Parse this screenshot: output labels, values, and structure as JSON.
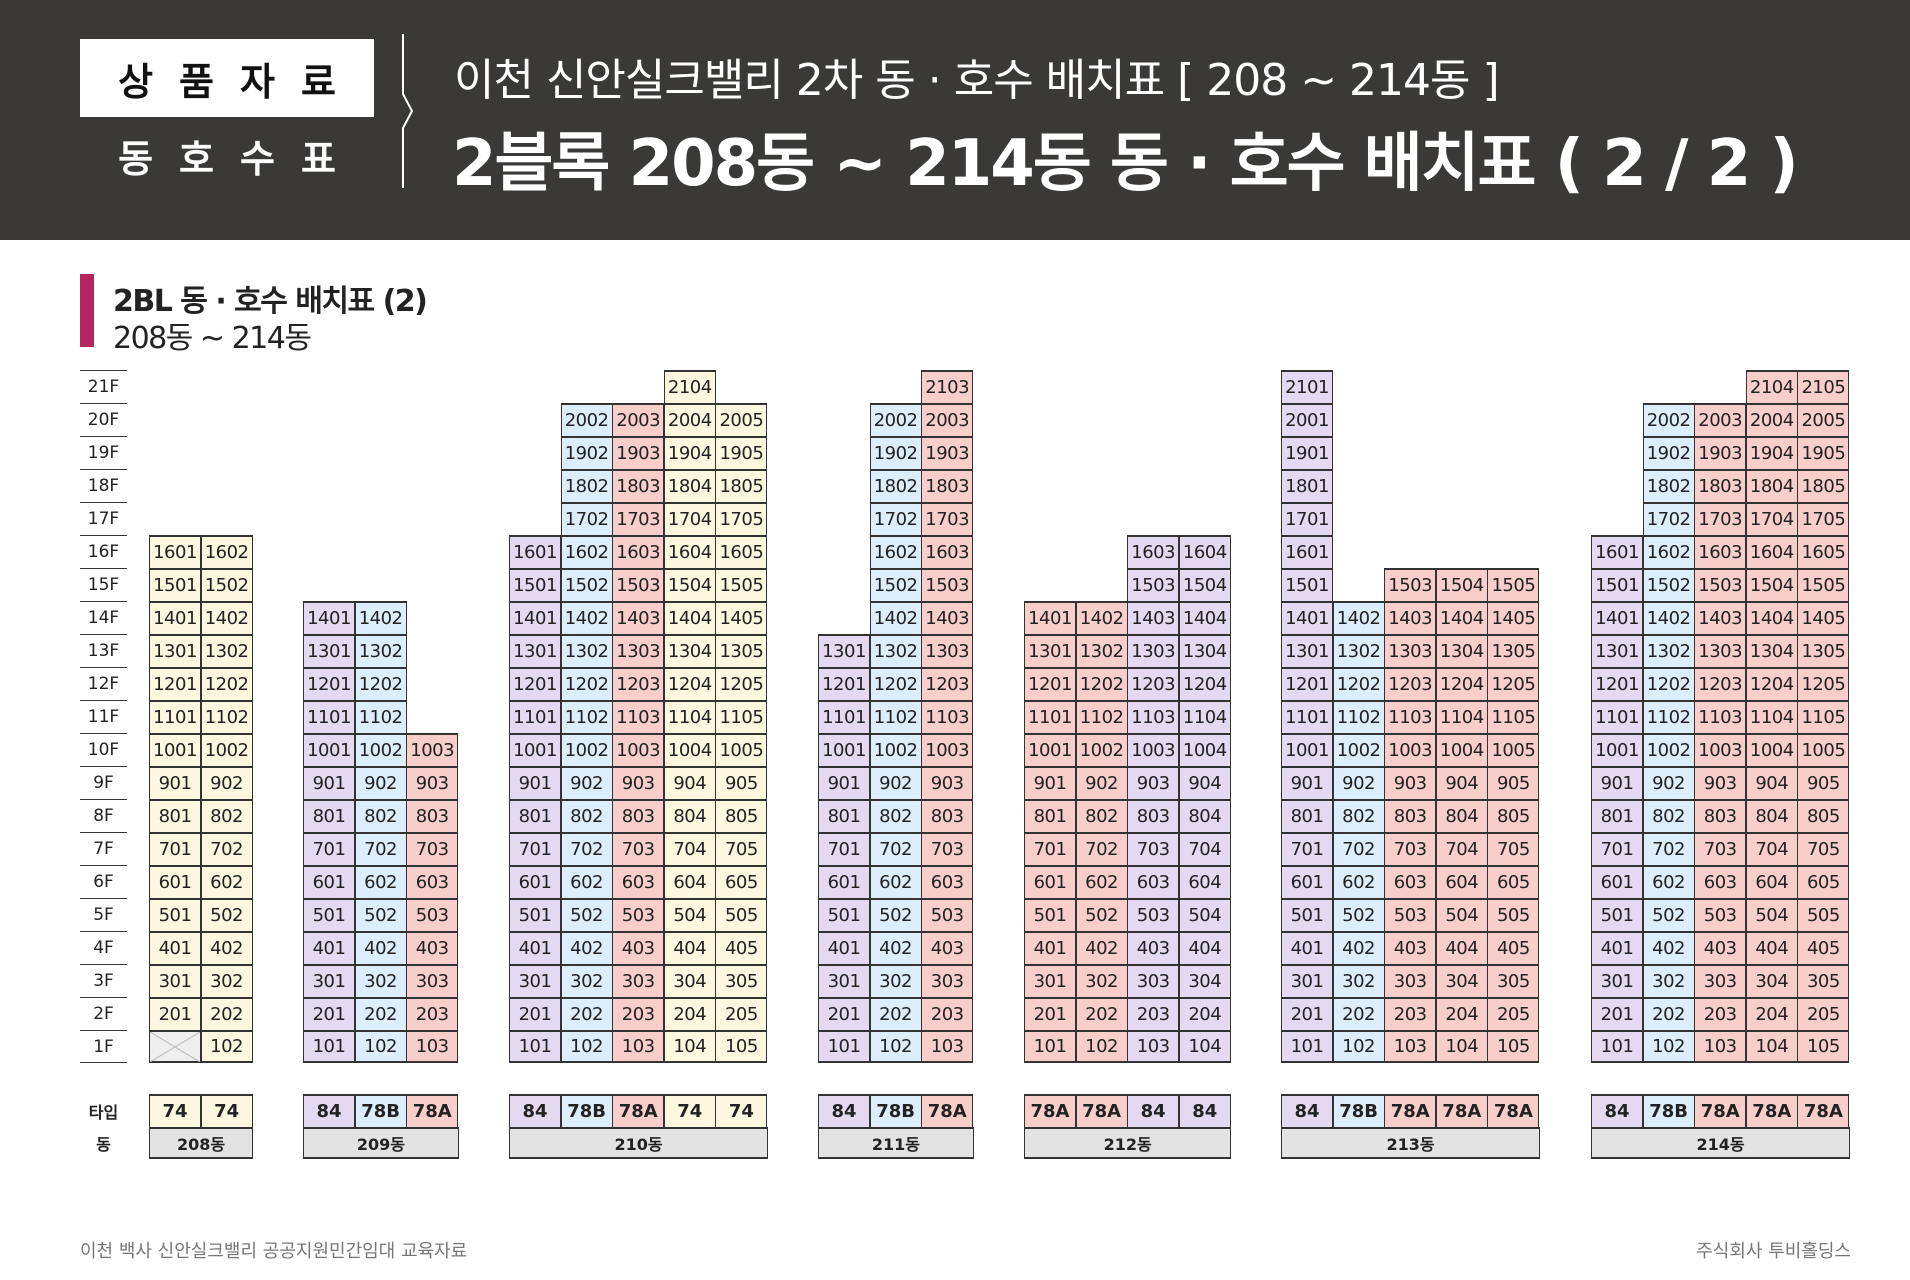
{
  "header": {
    "badge_top": "상품자료",
    "badge_bottom": "동호수표",
    "title1": "이천 신안실크밸리 2차 동 · 호수 배치표 [ 208 ~ 214동 ]",
    "title2": "2블록 208동 ~ 214동 동 · 호수 배치표 ( 2 / 2 )"
  },
  "section": {
    "title": "2BL 동 · 호수 배치표 (2)",
    "subtitle": "208동 ~ 214동"
  },
  "floor_labels": [
    "21F",
    "20F",
    "19F",
    "18F",
    "17F",
    "16F",
    "15F",
    "14F",
    "13F",
    "12F",
    "11F",
    "10F",
    "9F",
    "8F",
    "7F",
    "6F",
    "5F",
    "4F",
    "3F",
    "2F",
    "1F"
  ],
  "type_label": "타입",
  "dong_label": "동",
  "type_colors": {
    "84": "#e5d9f2",
    "78B": "#dcedfb",
    "78A": "#f7ceca",
    "74": "#fdf7e0",
    "empty": "#efefef"
  },
  "buildings": [
    {
      "name": "208동",
      "columns": [
        {
          "type": "74",
          "units": [
            "",
            "201",
            "301",
            "401",
            "501",
            "601",
            "701",
            "801",
            "901",
            "1001",
            "1101",
            "1201",
            "1301",
            "1401",
            "1501",
            "1601"
          ]
        },
        {
          "type": "74",
          "units": [
            "102",
            "202",
            "302",
            "402",
            "502",
            "602",
            "702",
            "802",
            "902",
            "1002",
            "1102",
            "1202",
            "1302",
            "1402",
            "1502",
            "1602"
          ]
        }
      ]
    },
    {
      "name": "209동",
      "columns": [
        {
          "type": "84",
          "units": [
            "101",
            "201",
            "301",
            "401",
            "501",
            "601",
            "701",
            "801",
            "901",
            "1001",
            "1101",
            "1201",
            "1301",
            "1401"
          ]
        },
        {
          "type": "78B",
          "units": [
            "102",
            "202",
            "302",
            "402",
            "502",
            "602",
            "702",
            "802",
            "902",
            "1002",
            "1102",
            "1202",
            "1302",
            "1402"
          ]
        },
        {
          "type": "78A",
          "units": [
            "103",
            "203",
            "303",
            "403",
            "503",
            "603",
            "703",
            "803",
            "903",
            "1003"
          ]
        }
      ]
    },
    {
      "name": "210동",
      "columns": [
        {
          "type": "84",
          "units": [
            "101",
            "201",
            "301",
            "401",
            "501",
            "601",
            "701",
            "801",
            "901",
            "1001",
            "1101",
            "1201",
            "1301",
            "1401",
            "1501",
            "1601"
          ]
        },
        {
          "type": "78B",
          "units": [
            "102",
            "202",
            "302",
            "402",
            "502",
            "602",
            "702",
            "802",
            "902",
            "1002",
            "1102",
            "1202",
            "1302",
            "1402",
            "1502",
            "1602",
            "1702",
            "1802",
            "1902",
            "2002"
          ]
        },
        {
          "type": "78A",
          "units": [
            "103",
            "203",
            "303",
            "403",
            "503",
            "603",
            "703",
            "803",
            "903",
            "1003",
            "1103",
            "1203",
            "1303",
            "1403",
            "1503",
            "1603",
            "1703",
            "1803",
            "1903",
            "2003"
          ]
        },
        {
          "type": "74",
          "units": [
            "104",
            "204",
            "304",
            "404",
            "504",
            "604",
            "704",
            "804",
            "904",
            "1004",
            "1104",
            "1204",
            "1304",
            "1404",
            "1504",
            "1604",
            "1704",
            "1804",
            "1904",
            "2004",
            "2104"
          ]
        },
        {
          "type": "74",
          "units": [
            "105",
            "205",
            "305",
            "405",
            "505",
            "605",
            "705",
            "805",
            "905",
            "1005",
            "1105",
            "1205",
            "1305",
            "1405",
            "1505",
            "1605",
            "1705",
            "1805",
            "1905",
            "2005"
          ]
        }
      ]
    },
    {
      "name": "211동",
      "columns": [
        {
          "type": "84",
          "units": [
            "101",
            "201",
            "301",
            "401",
            "501",
            "601",
            "701",
            "801",
            "901",
            "1001",
            "1101",
            "1201",
            "1301"
          ]
        },
        {
          "type": "78B",
          "units": [
            "102",
            "202",
            "302",
            "402",
            "502",
            "602",
            "702",
            "802",
            "902",
            "1002",
            "1102",
            "1202",
            "1302",
            "1402",
            "1502",
            "1602",
            "1702",
            "1802",
            "1902",
            "2002"
          ]
        },
        {
          "type": "78A",
          "units": [
            "103",
            "203",
            "303",
            "403",
            "503",
            "603",
            "703",
            "803",
            "903",
            "1003",
            "1103",
            "1203",
            "1303",
            "1403",
            "1503",
            "1603",
            "1703",
            "1803",
            "1903",
            "2003",
            "2103"
          ]
        }
      ]
    },
    {
      "name": "212동",
      "columns": [
        {
          "type": "78A",
          "units": [
            "101",
            "201",
            "301",
            "401",
            "501",
            "601",
            "701",
            "801",
            "901",
            "1001",
            "1101",
            "1201",
            "1301",
            "1401"
          ]
        },
        {
          "type": "78A",
          "units": [
            "102",
            "202",
            "302",
            "402",
            "502",
            "602",
            "702",
            "802",
            "902",
            "1002",
            "1102",
            "1202",
            "1302",
            "1402"
          ]
        },
        {
          "type": "84",
          "units": [
            "103",
            "203",
            "303",
            "403",
            "503",
            "603",
            "703",
            "803",
            "903",
            "1003",
            "1103",
            "1203",
            "1303",
            "1403",
            "1503",
            "1603"
          ]
        },
        {
          "type": "84",
          "units": [
            "104",
            "204",
            "304",
            "404",
            "504",
            "604",
            "704",
            "804",
            "904",
            "1004",
            "1104",
            "1204",
            "1304",
            "1404",
            "1504",
            "1604"
          ]
        }
      ]
    },
    {
      "name": "213동",
      "columns": [
        {
          "type": "84",
          "units": [
            "101",
            "201",
            "301",
            "401",
            "501",
            "601",
            "701",
            "801",
            "901",
            "1001",
            "1101",
            "1201",
            "1301",
            "1401",
            "1501",
            "1601",
            "1701",
            "1801",
            "1901",
            "2001",
            "2101"
          ]
        },
        {
          "type": "78B",
          "units": [
            "102",
            "202",
            "302",
            "402",
            "502",
            "602",
            "702",
            "802",
            "902",
            "1002",
            "1102",
            "1202",
            "1302",
            "1402"
          ]
        },
        {
          "type": "78A",
          "units": [
            "103",
            "203",
            "303",
            "403",
            "503",
            "603",
            "703",
            "803",
            "903",
            "1003",
            "1103",
            "1203",
            "1303",
            "1403",
            "1503"
          ]
        },
        {
          "type": "78A",
          "units": [
            "104",
            "204",
            "304",
            "404",
            "504",
            "604",
            "704",
            "804",
            "904",
            "1004",
            "1104",
            "1204",
            "1304",
            "1404",
            "1504"
          ]
        },
        {
          "type": "78A",
          "units": [
            "105",
            "205",
            "305",
            "405",
            "505",
            "605",
            "705",
            "805",
            "905",
            "1005",
            "1105",
            "1205",
            "1305",
            "1405",
            "1505"
          ]
        }
      ]
    },
    {
      "name": "214동",
      "columns": [
        {
          "type": "84",
          "units": [
            "101",
            "201",
            "301",
            "401",
            "501",
            "601",
            "701",
            "801",
            "901",
            "1001",
            "1101",
            "1201",
            "1301",
            "1401",
            "1501",
            "1601"
          ]
        },
        {
          "type": "78B",
          "units": [
            "102",
            "202",
            "302",
            "402",
            "502",
            "602",
            "702",
            "802",
            "902",
            "1002",
            "1102",
            "1202",
            "1302",
            "1402",
            "1502",
            "1602",
            "1702",
            "1802",
            "1902",
            "2002"
          ]
        },
        {
          "type": "78A",
          "units": [
            "103",
            "203",
            "303",
            "403",
            "503",
            "603",
            "703",
            "803",
            "903",
            "1003",
            "1103",
            "1203",
            "1303",
            "1403",
            "1503",
            "1603",
            "1703",
            "1803",
            "1903",
            "2003"
          ]
        },
        {
          "type": "78A",
          "units": [
            "104",
            "204",
            "304",
            "404",
            "504",
            "604",
            "704",
            "804",
            "904",
            "1004",
            "1104",
            "1204",
            "1304",
            "1404",
            "1504",
            "1604",
            "1704",
            "1804",
            "1904",
            "2004",
            "2104"
          ]
        },
        {
          "type": "78A",
          "units": [
            "105",
            "205",
            "305",
            "405",
            "505",
            "605",
            "705",
            "805",
            "905",
            "1005",
            "1105",
            "1205",
            "1305",
            "1405",
            "1505",
            "1605",
            "1705",
            "1805",
            "1905",
            "2005",
            "2105"
          ]
        }
      ]
    }
  ],
  "footer": {
    "left": "이천 백사 신안실크밸리 공공지원민간임대 교육자료",
    "right": "주식회사 투비홀딩스"
  }
}
